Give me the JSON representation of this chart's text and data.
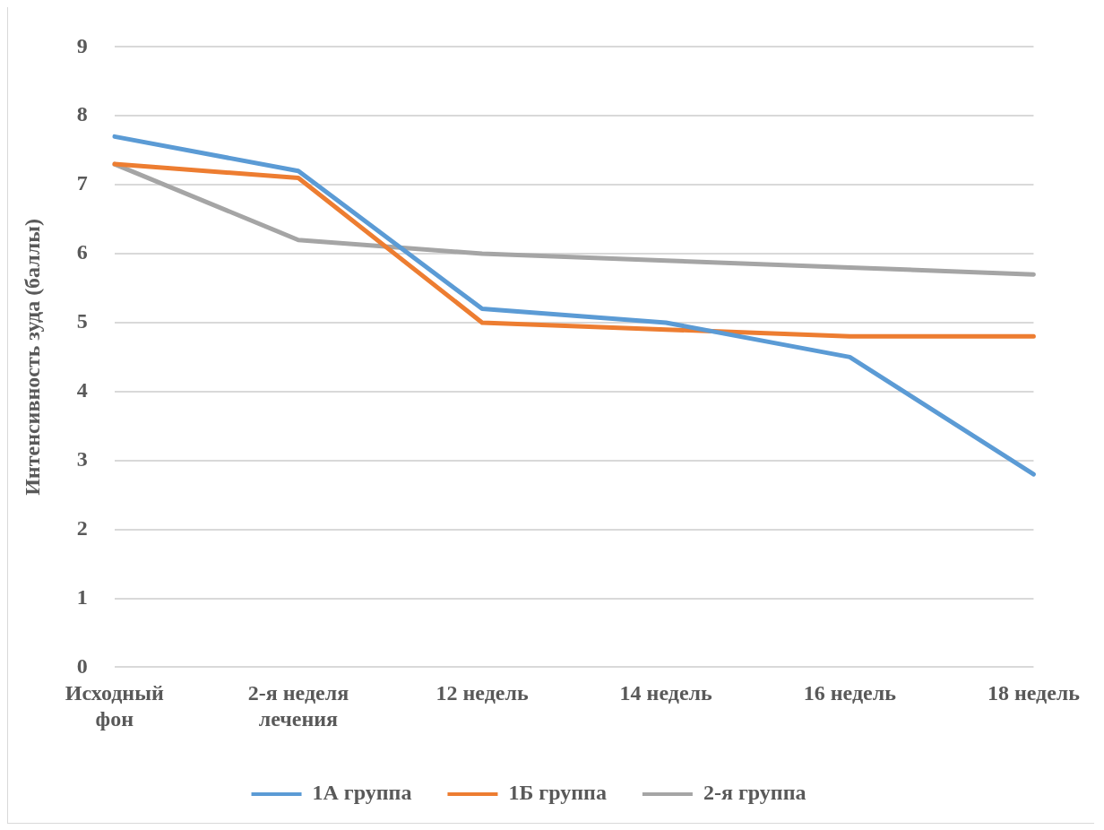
{
  "chart_data": {
    "type": "line",
    "ylabel": "Интенсивность зуда (баллы)",
    "categories": [
      "Исходный фон",
      "2-я неделя лечения",
      "12 недель",
      "14 недель",
      "16 недель",
      "18 недель"
    ],
    "series": [
      {
        "name": "1А группа",
        "color": "#5b9bd5",
        "values": [
          7.7,
          7.2,
          5.2,
          5.0,
          4.5,
          2.8
        ]
      },
      {
        "name": "1Б группа",
        "color": "#ed7d31",
        "values": [
          7.3,
          7.1,
          5.0,
          4.9,
          4.8,
          4.8
        ]
      },
      {
        "name": "2-я группа",
        "color": "#a5a5a5",
        "values": [
          7.3,
          6.2,
          6.0,
          5.9,
          5.8,
          5.7
        ]
      }
    ],
    "ylim": [
      0,
      9
    ],
    "yticks": [
      0,
      1,
      2,
      3,
      4,
      5,
      6,
      7,
      8,
      9
    ],
    "grid": "y",
    "legend": "bottom",
    "marker": "none",
    "line_style": "solid"
  }
}
